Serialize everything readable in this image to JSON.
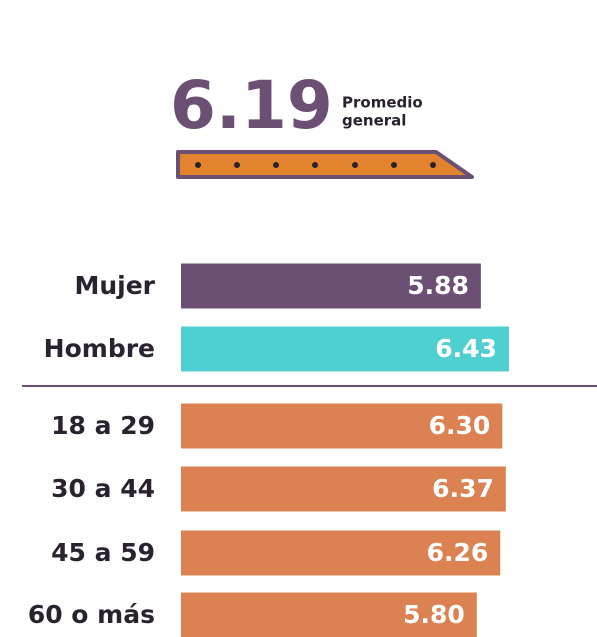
{
  "chart_data": {
    "type": "bar",
    "orientation": "horizontal",
    "overall": {
      "value": 6.19,
      "label": [
        "Promedio",
        "general"
      ]
    },
    "categories": [
      "Mujer",
      "Hombre",
      "18 a 29",
      "30 a 44",
      "45 a 59",
      "60 o más"
    ],
    "values": [
      5.88,
      6.43,
      6.3,
      6.37,
      6.26,
      5.8
    ],
    "value_labels": [
      "5.88",
      "6.43",
      "6.30",
      "6.37",
      "6.26",
      "5.80"
    ],
    "colors": [
      "#6b5074",
      "#4fcfcf",
      "#dc8152",
      "#dc8152",
      "#dc8152",
      "#dc8152"
    ]
  }
}
